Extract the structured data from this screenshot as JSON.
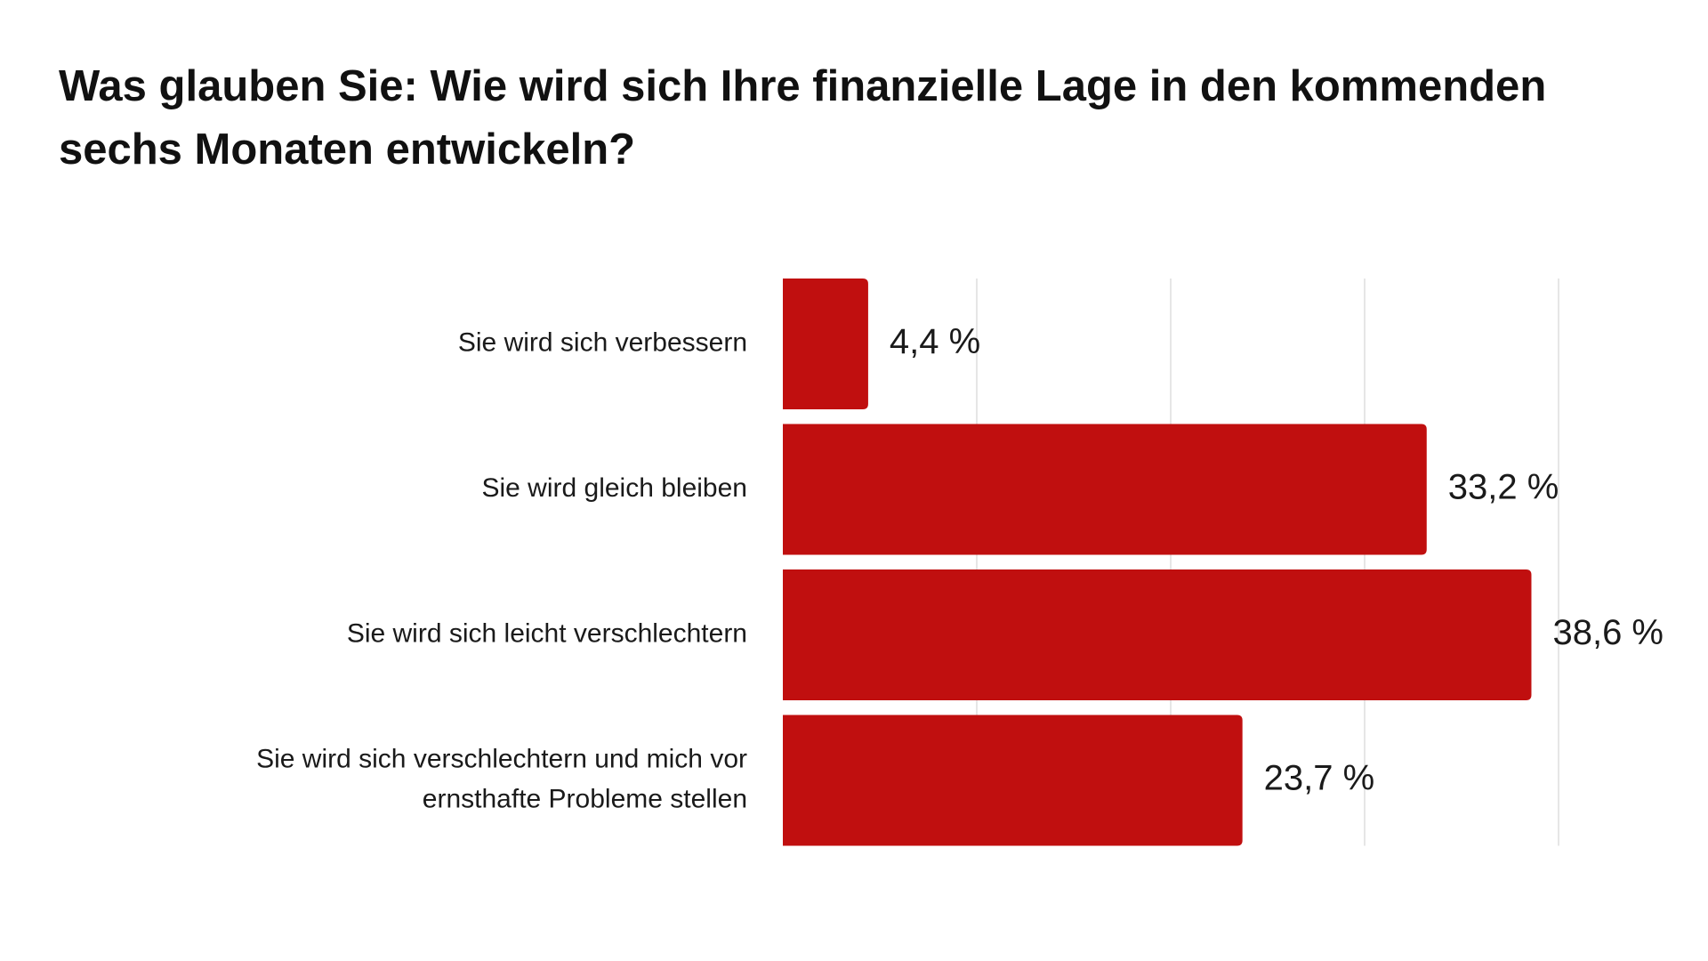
{
  "chart_data": {
    "type": "bar",
    "orientation": "horizontal",
    "title": "Was glauben Sie: Wie wird sich Ihre finanzielle Lage in den kommenden sechs Monaten entwickeln?",
    "categories": [
      [
        "Sie wird sich verbessern"
      ],
      [
        "Sie wird gleich bleiben"
      ],
      [
        "Sie wird sich leicht verschlechtern"
      ],
      [
        "Sie wird sich verschlechtern und mich vor",
        "ernsthafte Probleme stellen"
      ]
    ],
    "values": [
      4.4,
      33.2,
      38.6,
      23.7
    ],
    "value_labels": [
      "4,4 %",
      "33,2 %",
      "38,6 %",
      "23,7 %"
    ],
    "xlim": [
      0,
      40
    ],
    "gridlines_at": [
      10,
      20,
      30,
      40
    ],
    "grid": true,
    "bar_color": "#c00f0f",
    "gridline_color": "#dddddd"
  }
}
